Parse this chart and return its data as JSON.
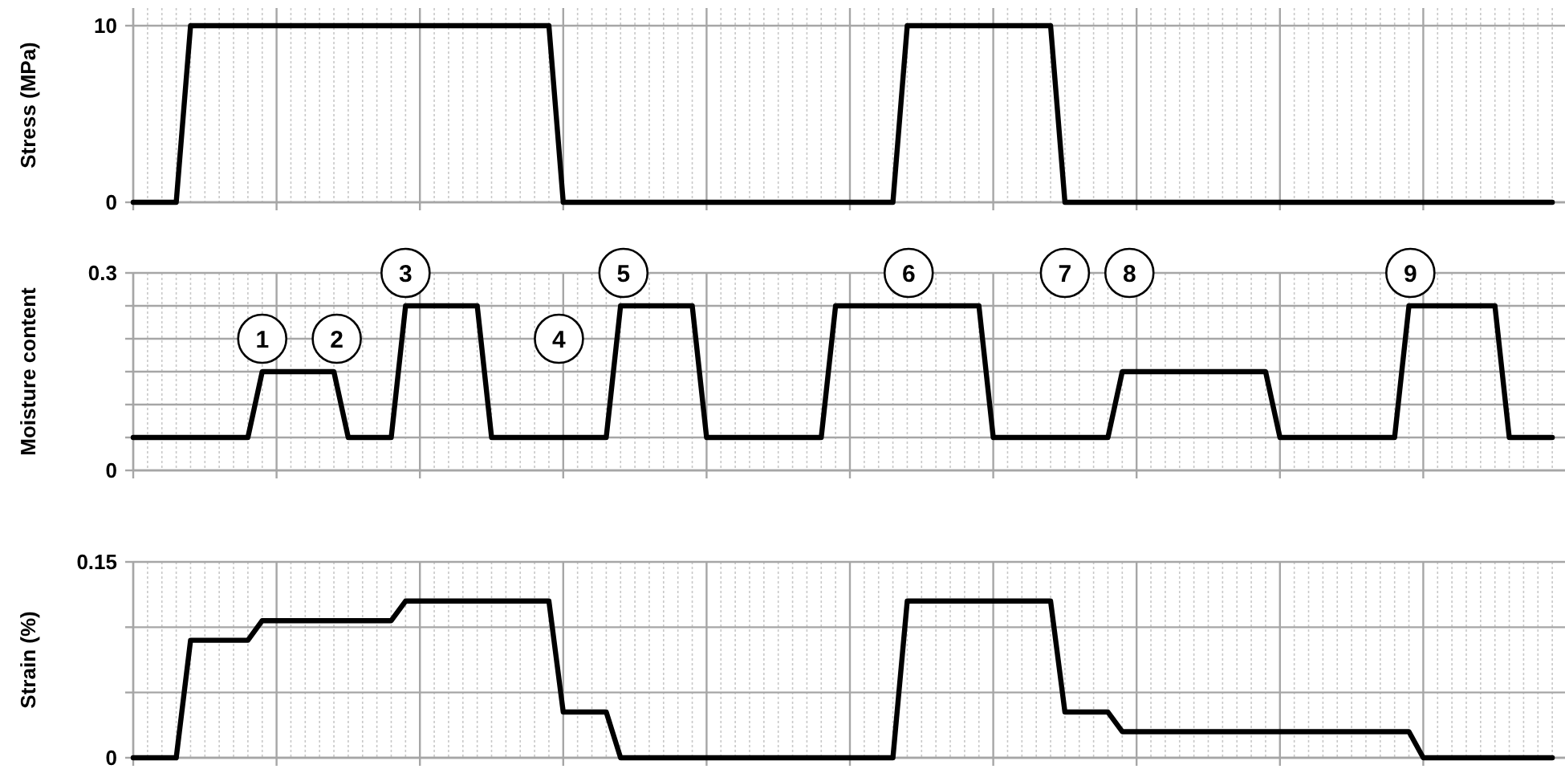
{
  "chart_data": [
    {
      "type": "line",
      "ylabel": "Stress (MPa)",
      "categories": [
        null,
        null,
        null,
        null,
        null,
        null,
        null,
        null,
        null,
        null,
        null,
        null,
        null,
        null,
        null,
        null,
        null,
        null,
        null,
        null,
        null,
        null,
        null,
        null,
        null,
        null,
        null,
        null,
        null,
        null,
        null,
        null,
        null,
        null,
        null,
        null,
        null,
        null,
        null,
        null,
        null,
        null,
        null,
        null,
        null,
        null,
        null,
        null,
        null,
        null,
        null,
        null,
        null,
        null,
        null,
        null,
        null,
        null,
        null,
        null,
        null,
        null,
        null,
        null,
        null,
        null,
        null,
        null,
        null,
        null,
        null,
        null,
        null,
        null,
        null,
        null,
        null,
        null,
        null,
        null,
        null,
        null,
        null,
        null,
        null,
        null,
        null,
        null,
        null,
        null,
        null,
        null,
        null,
        null,
        null,
        null,
        null,
        null,
        null,
        null
      ],
      "values": [
        0,
        0,
        0,
        0,
        10,
        10,
        10,
        10,
        10,
        10,
        10,
        10,
        10,
        10,
        10,
        10,
        10,
        10,
        10,
        10,
        10,
        10,
        10,
        10,
        10,
        10,
        10,
        10,
        10,
        10,
        0,
        0,
        0,
        0,
        0,
        0,
        0,
        0,
        0,
        0,
        0,
        0,
        0,
        0,
        0,
        0,
        0,
        0,
        0,
        0,
        0,
        0,
        0,
        0,
        10,
        10,
        10,
        10,
        10,
        10,
        10,
        10,
        10,
        10,
        10,
        0,
        0,
        0,
        0,
        0,
        0,
        0,
        0,
        0,
        0,
        0,
        0,
        0,
        0,
        0,
        0,
        0,
        0,
        0,
        0,
        0,
        0,
        0,
        0,
        0,
        0,
        0,
        0,
        0,
        0,
        0,
        0,
        0,
        0,
        0
      ],
      "color": "#000000",
      "ylim": [
        0,
        11
      ],
      "yticks": [
        0,
        10
      ],
      "grid": true,
      "tick_labels": "y",
      "marker": "none",
      "line_style": "solid"
    },
    {
      "type": "line",
      "ylabel": "Moisture content",
      "categories": [
        null,
        null,
        null,
        null,
        null,
        null,
        null,
        null,
        null,
        null,
        null,
        null,
        null,
        null,
        null,
        null,
        null,
        null,
        null,
        null,
        null,
        null,
        null,
        null,
        null,
        null,
        null,
        null,
        null,
        null,
        null,
        null,
        null,
        null,
        null,
        null,
        null,
        null,
        null,
        null,
        null,
        null,
        null,
        null,
        null,
        null,
        null,
        null,
        null,
        null,
        null,
        null,
        null,
        null,
        null,
        null,
        null,
        null,
        null,
        null,
        null,
        null,
        null,
        null,
        null,
        null,
        null,
        null,
        null,
        null,
        null,
        null,
        null,
        null,
        null,
        null,
        null,
        null,
        null,
        null,
        null,
        null,
        null,
        null,
        null,
        null,
        null,
        null,
        null,
        null,
        null,
        null,
        null,
        null,
        null,
        null,
        null,
        null,
        null,
        null
      ],
      "values": [
        0.05,
        0.05,
        0.05,
        0.05,
        0.05,
        0.05,
        0.05,
        0.05,
        0.05,
        0.15,
        0.15,
        0.15,
        0.15,
        0.15,
        0.15,
        0.05,
        0.05,
        0.05,
        0.05,
        0.25,
        0.25,
        0.25,
        0.25,
        0.25,
        0.25,
        0.05,
        0.05,
        0.05,
        0.05,
        0.05,
        0.05,
        0.05,
        0.05,
        0.05,
        0.25,
        0.25,
        0.25,
        0.25,
        0.25,
        0.25,
        0.05,
        0.05,
        0.05,
        0.05,
        0.05,
        0.05,
        0.05,
        0.05,
        0.05,
        0.25,
        0.25,
        0.25,
        0.25,
        0.25,
        0.25,
        0.25,
        0.25,
        0.25,
        0.25,
        0.25,
        0.05,
        0.05,
        0.05,
        0.05,
        0.05,
        0.05,
        0.05,
        0.05,
        0.05,
        0.15,
        0.15,
        0.15,
        0.15,
        0.15,
        0.15,
        0.15,
        0.15,
        0.15,
        0.15,
        0.15,
        0.05,
        0.05,
        0.05,
        0.05,
        0.05,
        0.05,
        0.05,
        0.05,
        0.05,
        0.25,
        0.25,
        0.25,
        0.25,
        0.25,
        0.25,
        0.25,
        0.05,
        0.05,
        0.05,
        0.05
      ],
      "color": "#000000",
      "ylim": [
        0,
        0.3
      ],
      "yticks": [
        0,
        {
          "value": 0.05,
          "label": null
        },
        {
          "value": 0.1,
          "label": null
        },
        {
          "value": 0.15,
          "label": null
        },
        {
          "value": 0.2,
          "label": null
        },
        {
          "value": 0.25,
          "label": null
        },
        0.3
      ],
      "grid": true,
      "tick_labels": "y",
      "marker": "none",
      "line_style": "solid",
      "annotations": [
        "1",
        "2",
        "3",
        "4",
        "5",
        "6",
        "7",
        "8",
        "9"
      ]
    },
    {
      "type": "line",
      "ylabel": "Strain (%)",
      "categories": [
        null,
        null,
        null,
        null,
        null,
        null,
        null,
        null,
        null,
        null,
        null,
        null,
        null,
        null,
        null,
        null,
        null,
        null,
        null,
        null,
        null,
        null,
        null,
        null,
        null,
        null,
        null,
        null,
        null,
        null,
        null,
        null,
        null,
        null,
        null,
        null,
        null,
        null,
        null,
        null,
        null,
        null,
        null,
        null,
        null,
        null,
        null,
        null,
        null,
        null,
        null,
        null,
        null,
        null,
        null,
        null,
        null,
        null,
        null,
        null,
        null,
        null,
        null,
        null,
        null,
        null,
        null,
        null,
        null,
        null,
        null,
        null,
        null,
        null,
        null,
        null,
        null,
        null,
        null,
        null,
        null,
        null,
        null,
        null,
        null,
        null,
        null,
        null,
        null,
        null,
        null,
        null,
        null,
        null,
        null,
        null,
        null,
        null,
        null,
        null
      ],
      "values": [
        0,
        0,
        0,
        0,
        0.09,
        0.09,
        0.09,
        0.09,
        0.09,
        0.105,
        0.105,
        0.105,
        0.105,
        0.105,
        0.105,
        0.105,
        0.105,
        0.105,
        0.105,
        0.12,
        0.12,
        0.12,
        0.12,
        0.12,
        0.12,
        0.12,
        0.12,
        0.12,
        0.12,
        0.12,
        0.035,
        0.035,
        0.035,
        0.035,
        0,
        0,
        0,
        0,
        0,
        0,
        0,
        0,
        0,
        0,
        0,
        0,
        0,
        0,
        0,
        0,
        0,
        0,
        0,
        0,
        0.12,
        0.12,
        0.12,
        0.12,
        0.12,
        0.12,
        0.12,
        0.12,
        0.12,
        0.12,
        0.12,
        0.035,
        0.035,
        0.035,
        0.035,
        0.02,
        0.02,
        0.02,
        0.02,
        0.02,
        0.02,
        0.02,
        0.02,
        0.02,
        0.02,
        0.02,
        0.02,
        0.02,
        0.02,
        0.02,
        0.02,
        0.02,
        0.02,
        0.02,
        0.02,
        0.02,
        0,
        0,
        0,
        0,
        0,
        0,
        0,
        0,
        0,
        0
      ],
      "color": "#000000",
      "ylim": [
        0,
        0.15
      ],
      "yticks": [
        0,
        {
          "value": 0.05,
          "label": null
        },
        {
          "value": 0.1,
          "label": null
        },
        0.15
      ],
      "grid": true,
      "tick_labels": "y",
      "marker": "none",
      "line_style": "solid"
    }
  ]
}
